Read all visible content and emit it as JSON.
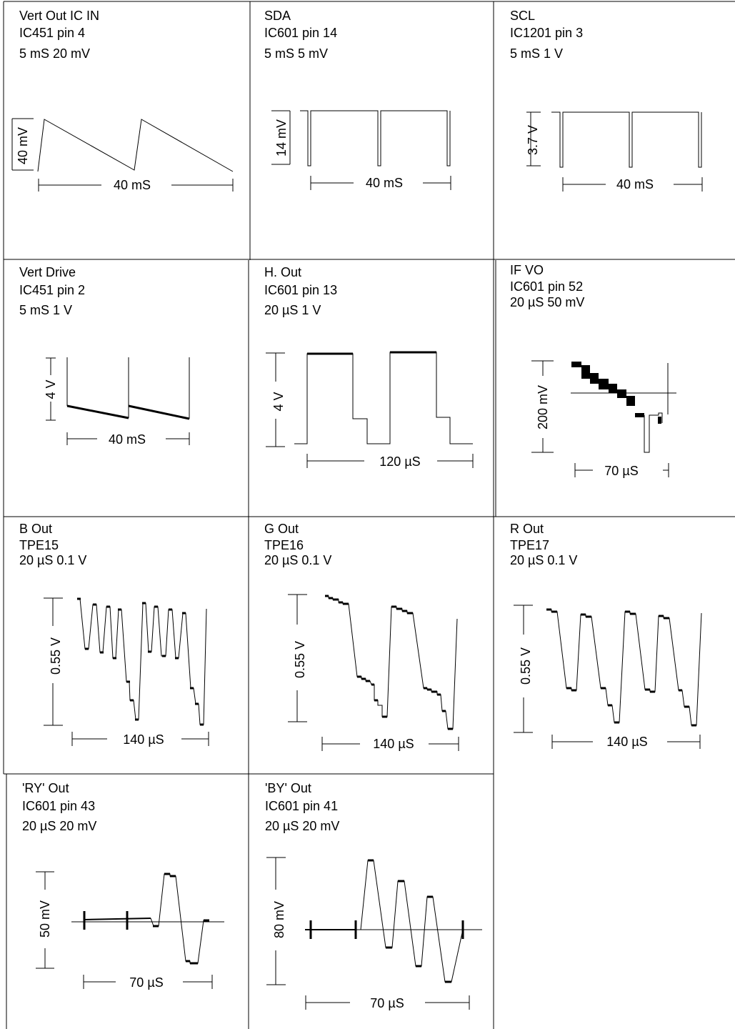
{
  "cells": [
    {
      "id": "vert-out",
      "title": "Vert Out IC IN",
      "pin": "IC451 pin 4",
      "scale": "5 mS 20 mV",
      "amplitude": "40 mV",
      "time": "40 mS"
    },
    {
      "id": "sda",
      "title": "SDA",
      "pin": "IC601 pin 14",
      "scale": "5 mS 5 mV",
      "amplitude": "14 mV",
      "time": "40 mS"
    },
    {
      "id": "scl",
      "title": "SCL",
      "pin": "IC1201 pin 3",
      "scale": "5 mS 1 V",
      "amplitude": "3.7 V",
      "time": "40 mS"
    },
    {
      "id": "vert-drive",
      "title": "Vert Drive",
      "pin": "IC451 pin 2",
      "scale": "5 mS 1 V",
      "amplitude": "4 V",
      "time": "40 mS"
    },
    {
      "id": "h-out",
      "title": "H. Out",
      "pin": "IC601 pin 13",
      "scale": "20 µS 1 V",
      "amplitude": "4 V",
      "time": "120 µS"
    },
    {
      "id": "if-vo",
      "title": "IF VO",
      "pin": "IC601 pin 52",
      "scale": "20 µS 50 mV",
      "amplitude": "200 mV",
      "time": "70 µS"
    },
    {
      "id": "b-out",
      "title": "B Out",
      "pin": "TPE15",
      "scale": "20 µS 0.1 V",
      "amplitude": "0.55 V",
      "time": "140 µS"
    },
    {
      "id": "g-out",
      "title": "G Out",
      "pin": "TPE16",
      "scale": "20 µS 0.1 V",
      "amplitude": "0.55 V",
      "time": "140 µS"
    },
    {
      "id": "r-out",
      "title": "R Out",
      "pin": "TPE17",
      "scale": "20 µS 0.1 V",
      "amplitude": "0.55 V",
      "time": "140 µS"
    },
    {
      "id": "ry-out",
      "title": "'RY' Out",
      "pin": "IC601 pin 43",
      "scale": "20 µS 20 mV",
      "amplitude": "50 mV",
      "time": "70 µS"
    },
    {
      "id": "by-out",
      "title": "'BY' Out",
      "pin": "IC601 pin 41",
      "scale": "20 µS 20 mV",
      "amplitude": "80 mV",
      "time": "70 µS"
    }
  ]
}
